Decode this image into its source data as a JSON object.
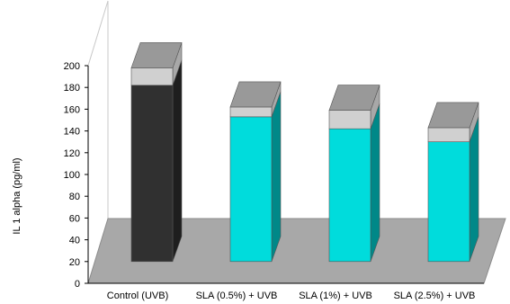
{
  "chart_data": {
    "type": "bar",
    "style": "3d-stacked",
    "title": "",
    "xlabel": "",
    "ylabel": "IL 1 alpha (pg/ml)",
    "ylim": [
      0,
      200
    ],
    "ytick_step": 20,
    "grid": false,
    "legend": "none",
    "categories": [
      "Control (UVB)",
      "SLA (0.5%) + UVB",
      "SLA (1%) + UVB",
      "SLA (2.5%) + UVB"
    ],
    "series": [
      {
        "values": [
          182,
          153,
          142,
          130
        ]
      },
      {
        "values": [
          16,
          9,
          17,
          13
        ]
      }
    ],
    "colors": {
      "control_bar": "#303030",
      "sla_bar": "#00dcdc",
      "error_segment": "#d0d0d0",
      "bar_top": "#999999",
      "floor": "#a8a8a8"
    }
  }
}
